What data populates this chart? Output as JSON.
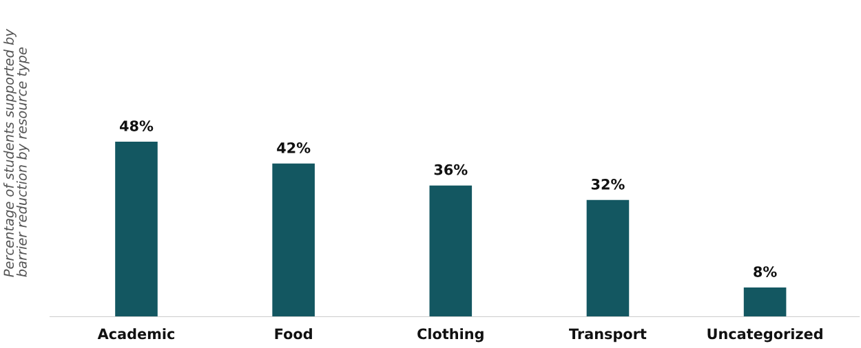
{
  "chart_data": {
    "type": "bar",
    "ylabel": "Percentage of students supported by barrier reduction by resource type",
    "categories": [
      "Academic",
      "Food",
      "Clothing",
      "Transport",
      "Uncategorized"
    ],
    "values": [
      48,
      42,
      36,
      32,
      8
    ],
    "value_labels": [
      "48%",
      "42%",
      "36%",
      "32%",
      "8%"
    ],
    "color": "#135761",
    "grid": false,
    "legend": false
  }
}
